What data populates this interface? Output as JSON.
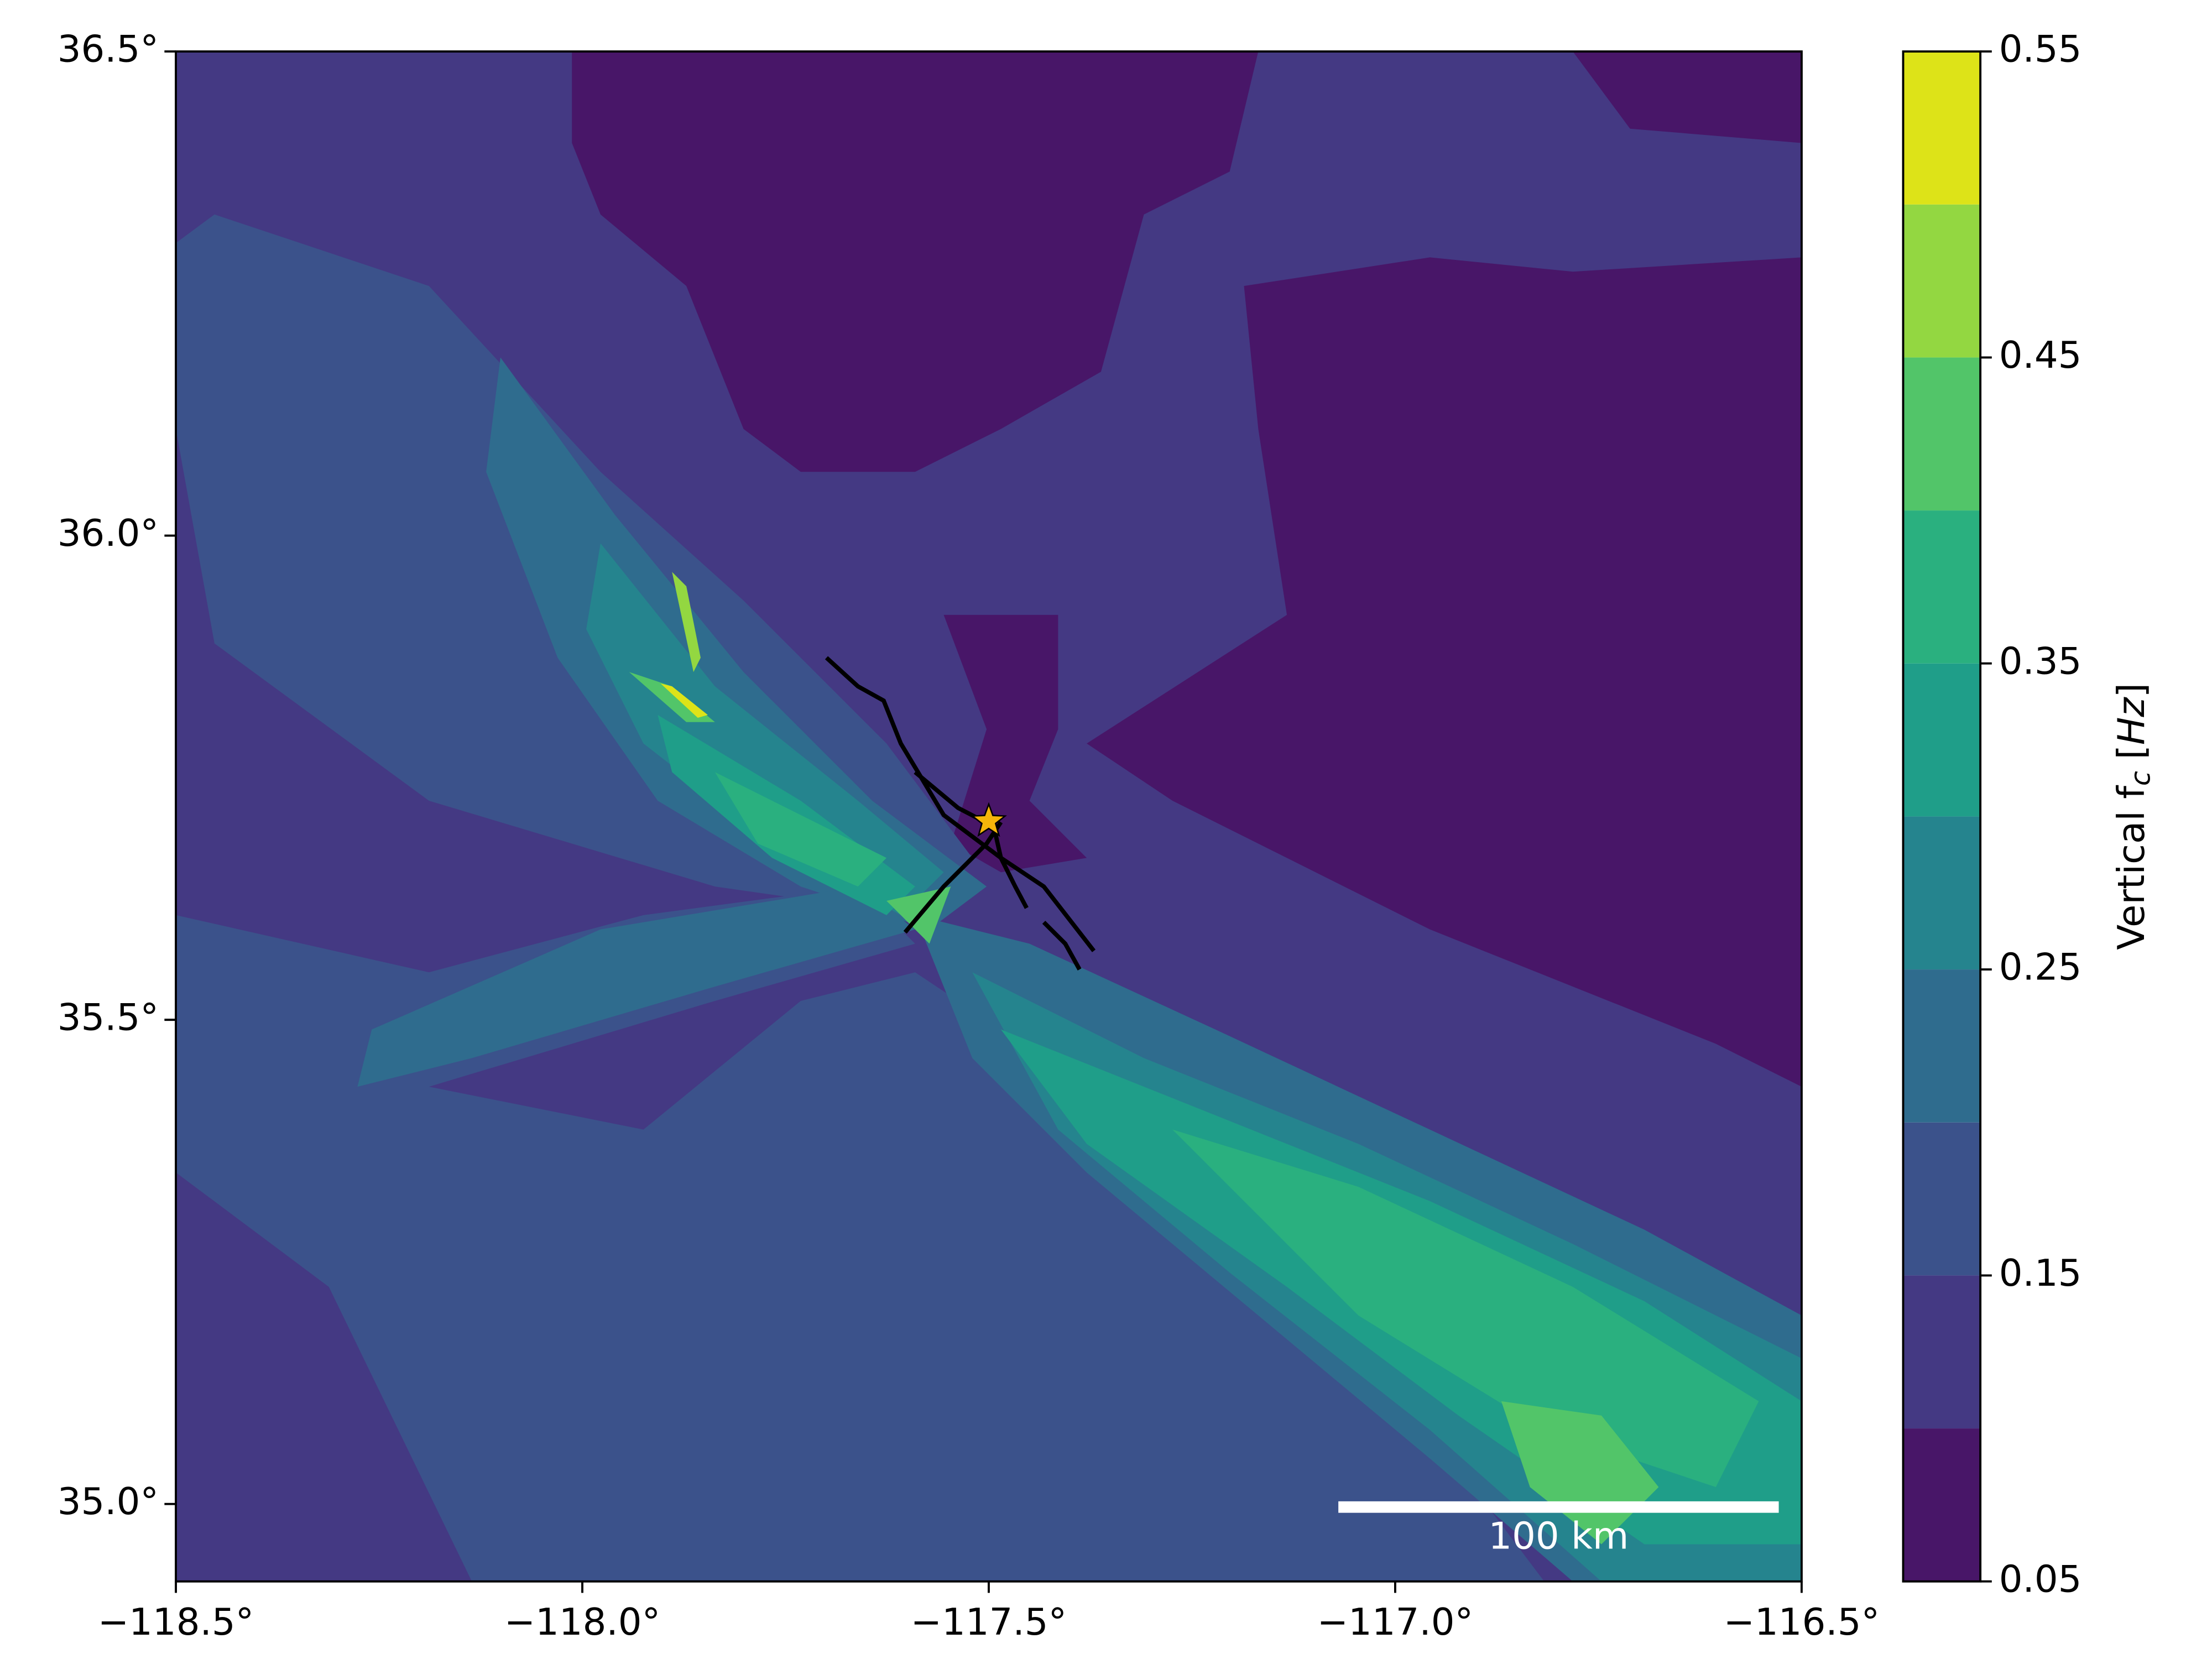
{
  "chart_data": {
    "type": "contour",
    "xlim": [
      -118.5,
      -116.5
    ],
    "ylim": [
      34.92,
      36.5
    ],
    "xticks": [
      {
        "value": -118.5,
        "label": "−118.5°"
      },
      {
        "value": -118.0,
        "label": "−118.0°"
      },
      {
        "value": -117.5,
        "label": "−117.5°"
      },
      {
        "value": -117.0,
        "label": "−117.0°"
      },
      {
        "value": -116.5,
        "label": "−116.5°"
      }
    ],
    "yticks": [
      {
        "value": 35.0,
        "label": "35.0°"
      },
      {
        "value": 35.5,
        "label": "35.5°"
      },
      {
        "value": 36.0,
        "label": "36.0°"
      },
      {
        "value": 36.5,
        "label": "36.5°"
      }
    ],
    "levels": [
      0.05,
      0.1,
      0.15,
      0.2,
      0.25,
      0.3,
      0.35,
      0.4,
      0.45,
      0.5,
      0.55
    ],
    "colors": [
      "#481668",
      "#443983",
      "#3b528b",
      "#2f6c8e",
      "#25848e",
      "#1f9e89",
      "#2ab07f",
      "#52c569",
      "#93d741",
      "#dde318"
    ],
    "colorbar_ticks": [
      0.05,
      0.15,
      0.25,
      0.35,
      0.45,
      0.55
    ],
    "colorbar_label": [
      "Vertical f",
      "c",
      "[",
      "Hz",
      "]"
    ],
    "epicenter": {
      "lon": -117.5,
      "lat": 35.705,
      "color": "#f5b50a"
    },
    "scale_bar": {
      "label": "100 km",
      "color": "#ffffff"
    }
  }
}
